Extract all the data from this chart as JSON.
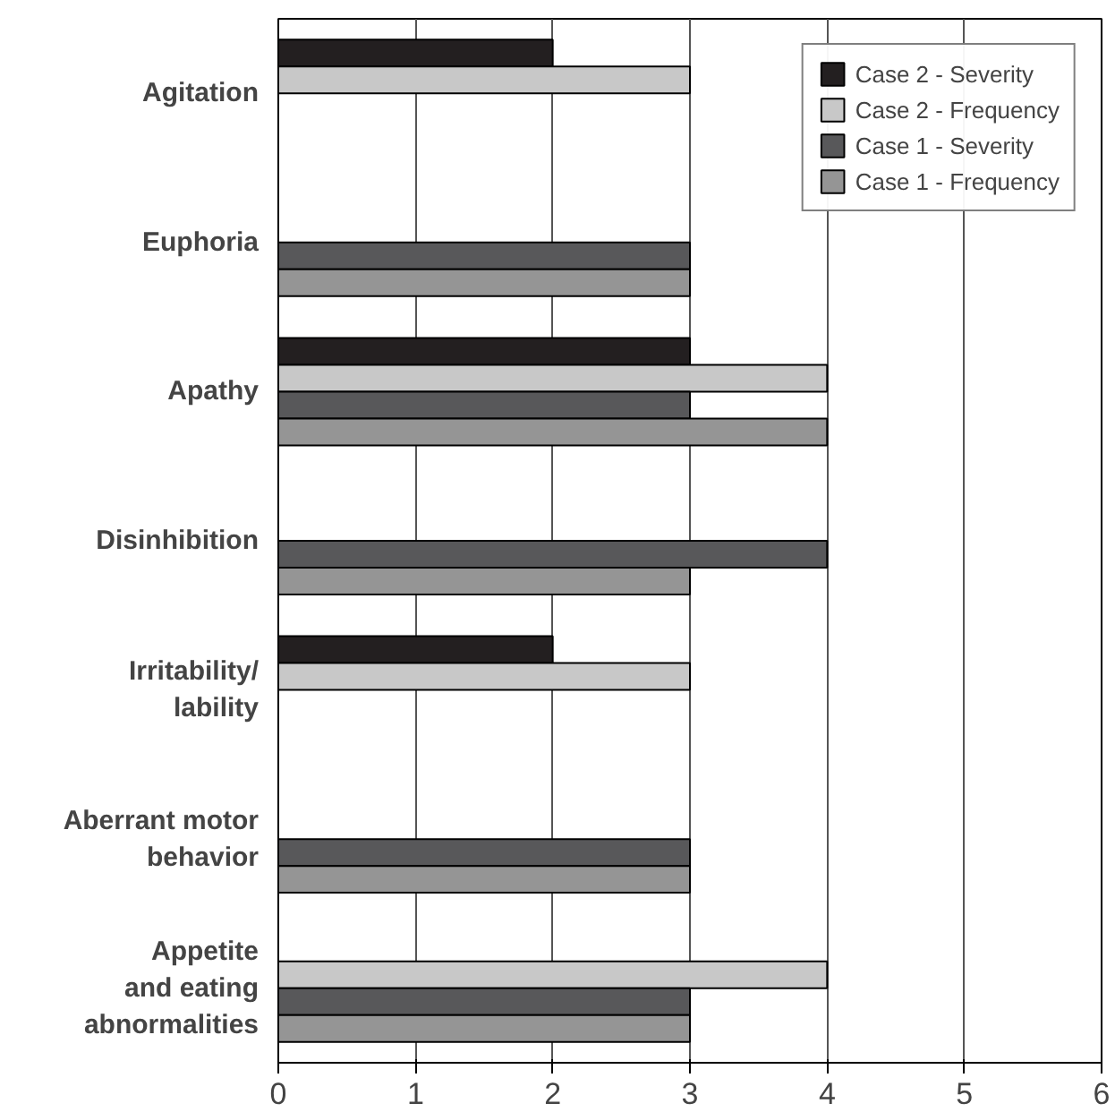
{
  "chart_data": {
    "type": "bar",
    "orientation": "horizontal",
    "categories": [
      "Agitation",
      "Euphoria",
      "Apathy",
      "Disinhibition",
      "Irritability/\nlability",
      "Aberrant motor\nbehavior",
      "Appetite\nand eating\nabnormalities"
    ],
    "series": [
      {
        "name": "Case 2 - Severity",
        "color": "#231f20",
        "values": [
          2,
          null,
          3,
          null,
          2,
          null,
          null
        ]
      },
      {
        "name": "Case 2 - Frequency",
        "color": "#c8c8c8",
        "values": [
          3,
          null,
          4,
          null,
          3,
          null,
          4
        ]
      },
      {
        "name": "Case 1 - Severity",
        "color": "#58585a",
        "values": [
          null,
          3,
          3,
          4,
          null,
          3,
          3
        ]
      },
      {
        "name": "Case 1 - Frequency",
        "color": "#959595",
        "values": [
          null,
          3,
          4,
          3,
          null,
          3,
          3
        ]
      }
    ],
    "xlim": [
      0,
      6
    ],
    "xticks": [
      0,
      1,
      2,
      3,
      4,
      5,
      6
    ],
    "grid": "x",
    "legend": "top right"
  }
}
